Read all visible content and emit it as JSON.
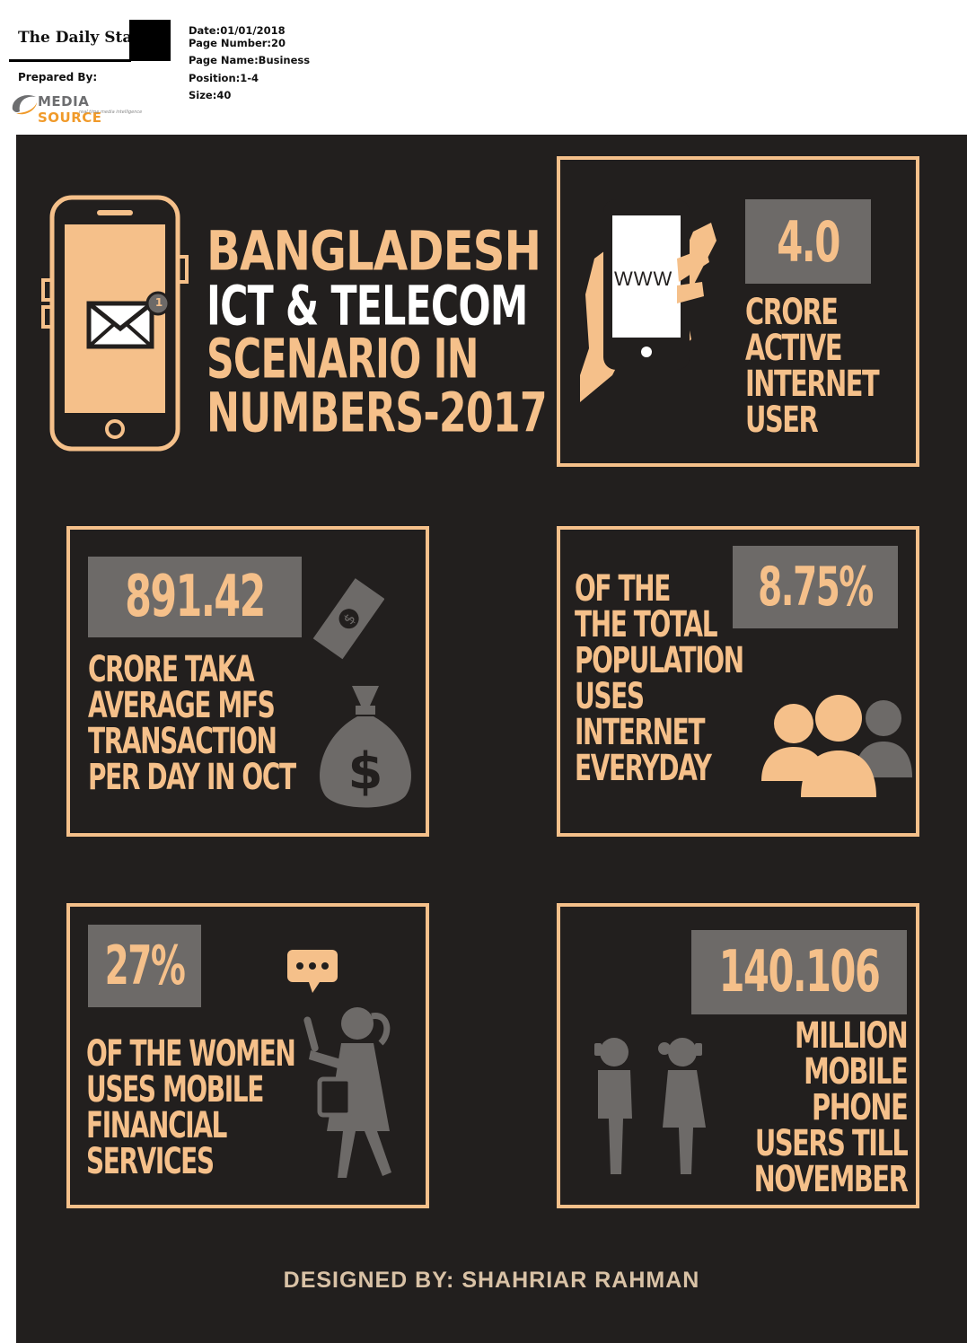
{
  "clipping": {
    "paper_name": "The Daily Star",
    "prepared_by_label": "Prepared By:",
    "agency_name_part1": "MEDIA",
    "agency_name_part2": "SOURCE",
    "agency_tagline": "real time media intelligence",
    "date": "Date:01/01/2018",
    "page_number": "Page Number:20",
    "page_name": "Page Name:Business",
    "position": "Position:1-4",
    "size": "Size:40"
  },
  "infographic": {
    "title_lines": [
      "BANGLADESH",
      "ICT & TELECOM",
      "SCENARIO IN",
      "NUMBERS-2017"
    ],
    "icon_labels": {
      "www": "WWW",
      "notification": "1"
    },
    "stats": {
      "internet_users": {
        "value": "4.0",
        "caption": [
          "CRORE",
          "ACTIVE",
          "INTERNET",
          "USER"
        ]
      },
      "mfs_transaction": {
        "value": "891.42",
        "caption": [
          "CRORE TAKA",
          "AVERAGE MFS",
          "TRANSACTION",
          "PER DAY IN OCT"
        ]
      },
      "daily_internet": {
        "value": "8.75%",
        "caption": [
          "OF THE",
          "THE TOTAL",
          "POPULATION",
          "USES",
          "INTERNET",
          "EVERYDAY"
        ]
      },
      "women_mfs": {
        "value": "27%",
        "caption": [
          "OF THE WOMEN",
          "USES MOBILE",
          "FINANCIAL",
          "SERVICES"
        ]
      },
      "mobile_users": {
        "value": "140.106",
        "caption": [
          "MILLION",
          "MOBILE",
          "PHONE",
          "USERS TILL",
          "NOVEMBER"
        ]
      }
    },
    "credit": "DESIGNED BY:  SHAHRIAR RAHMAN"
  },
  "colors": {
    "background": "#221f1e",
    "accent": "#f5c08a",
    "grey": "#6d6a68",
    "white": "#ffffff"
  },
  "icons": [
    "smartphone-icon",
    "envelope-icon",
    "hand-phone-icon",
    "banknote-icon",
    "money-bag-icon",
    "people-group-icon",
    "chat-bubble-icon",
    "woman-icon",
    "couple-phone-icon"
  ]
}
